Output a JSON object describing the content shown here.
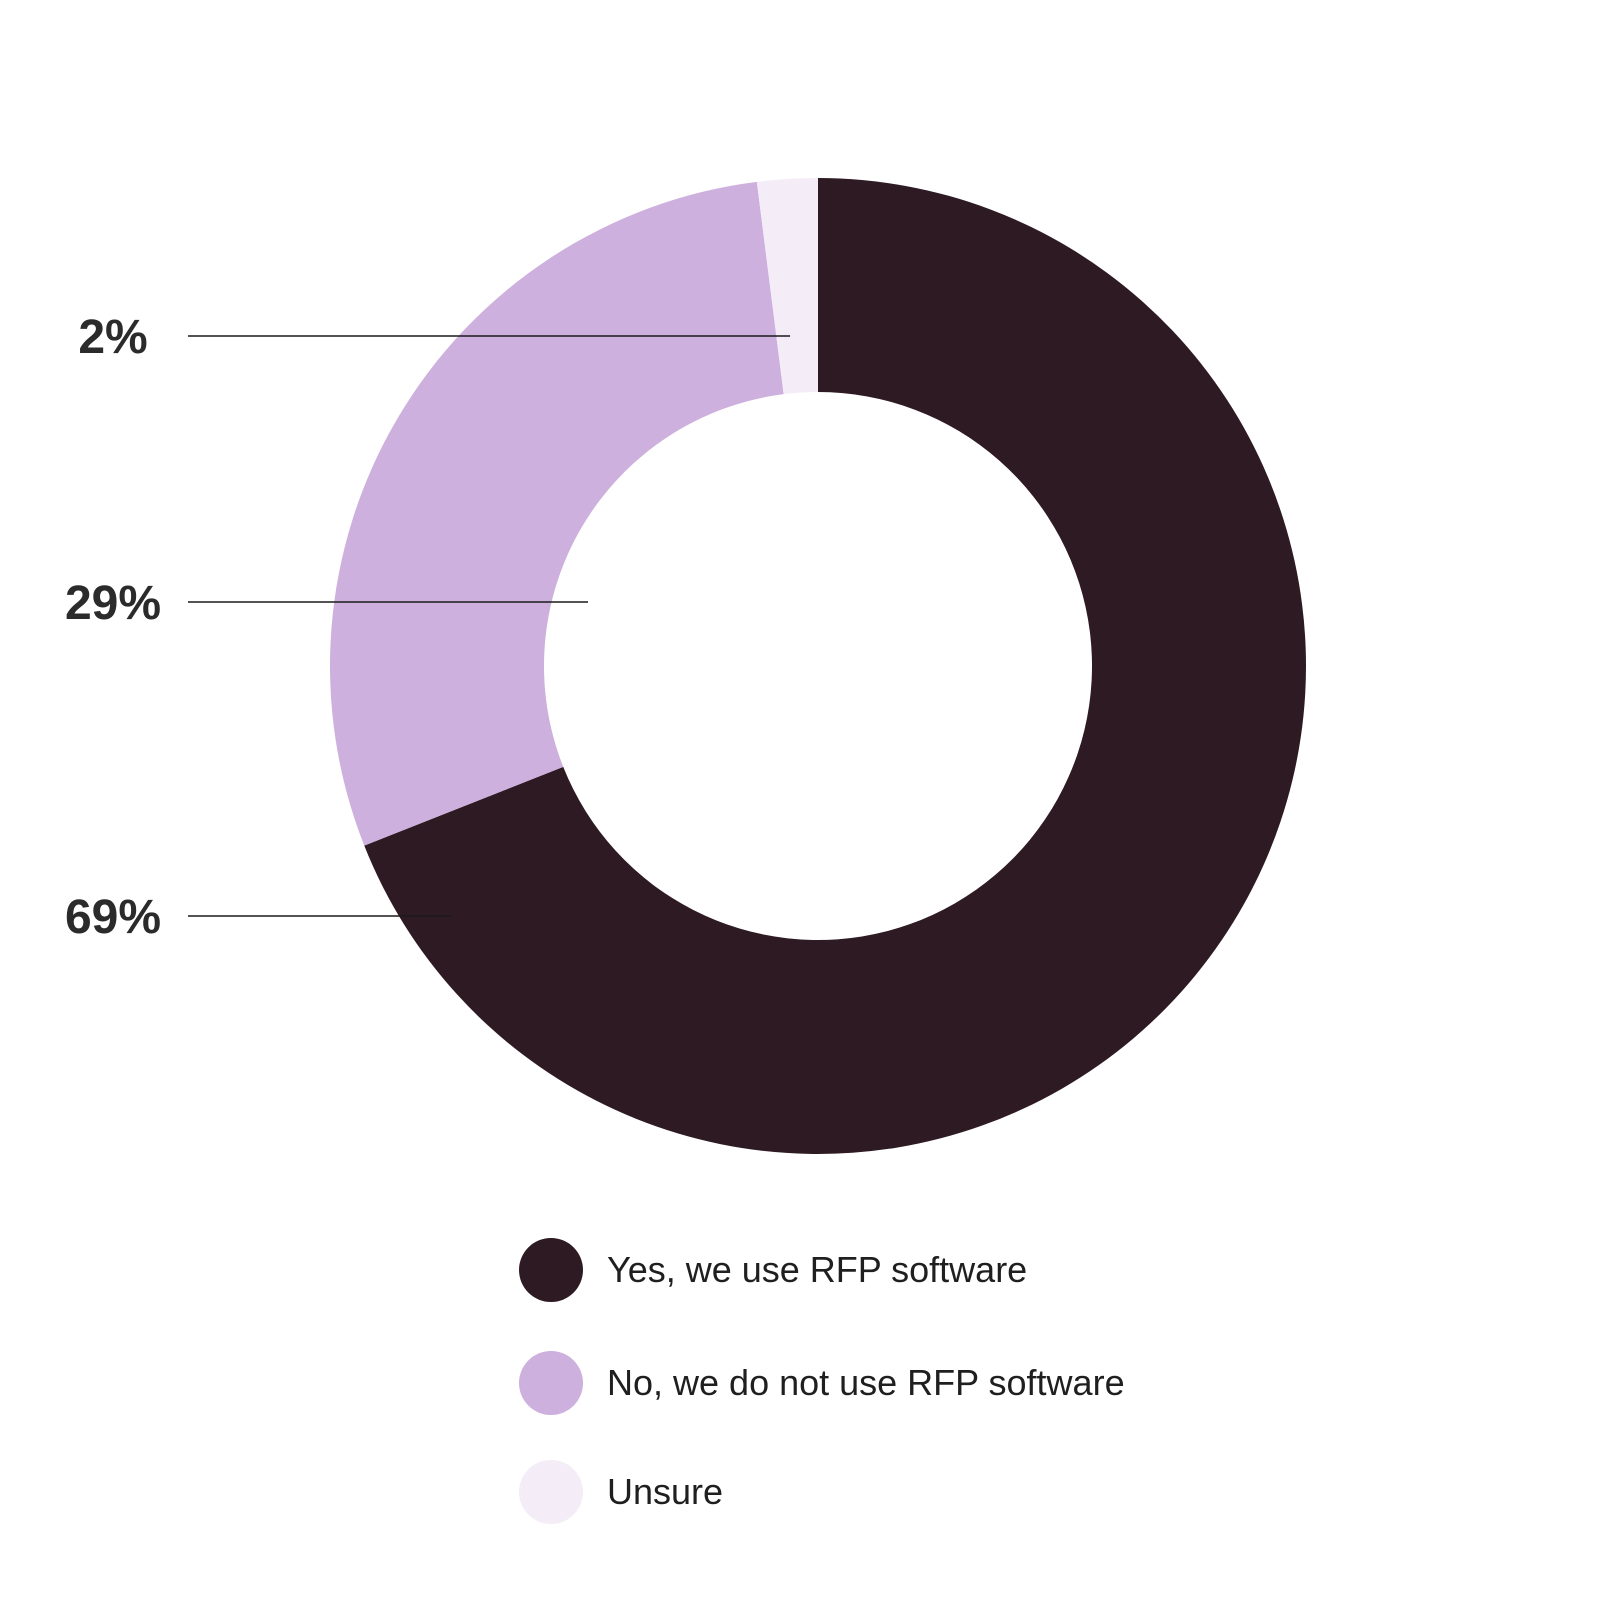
{
  "chart_data": {
    "type": "pie",
    "donut": true,
    "slices": [
      {
        "label": "Yes, we use RFP software",
        "value": 69,
        "display": "69%",
        "color": "#2e1a23"
      },
      {
        "label": "No, we do not use RFP software",
        "value": 29,
        "display": "29%",
        "color": "#cdb0dd"
      },
      {
        "label": "Unsure",
        "value": 2,
        "display": "2%",
        "color": "#f4ecf6"
      }
    ],
    "legend_placement": "bottom"
  }
}
